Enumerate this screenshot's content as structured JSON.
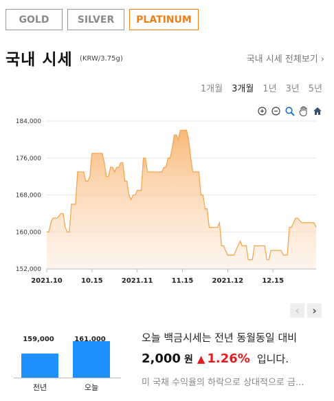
{
  "tabs": [
    {
      "label": "GOLD"
    },
    {
      "label": "SILVER"
    },
    {
      "label": "PLATINUM"
    }
  ],
  "header": {
    "title": "국내 시세",
    "unit": "(KRW/3.75g)",
    "view_all": "국내 시세 전체보기 ›"
  },
  "periods": [
    {
      "label": "1개월"
    },
    {
      "label": "3개월"
    },
    {
      "label": "1년"
    },
    {
      "label": "3년"
    },
    {
      "label": "5년"
    }
  ],
  "toolbar": {
    "icons": [
      "zoom-in-icon",
      "zoom-out-icon",
      "magnifier-icon",
      "hand-pan-icon",
      "home-icon"
    ]
  },
  "colors": {
    "accent": "#f07d16",
    "line": "#f5a54f",
    "fill_top": "#f9b672",
    "bar": "#1e90ff",
    "up": "#e21d1d"
  },
  "chart_data": {
    "type": "area",
    "yticks": [
      "184,000",
      "176,000",
      "168,000",
      "160,000",
      "152,000"
    ],
    "ylim": [
      152000,
      184000
    ],
    "xticks": [
      "2021.10",
      "10.15",
      "2021.11",
      "11.15",
      "2021.12",
      "12.15"
    ],
    "grid": true,
    "series": [
      {
        "values": [
          160000,
          160000,
          162000,
          163000,
          163000,
          163000,
          163500,
          164000,
          164000,
          161000,
          160000,
          160000,
          166000,
          166000,
          166000,
          173000,
          173000,
          173000,
          173000,
          171000,
          171000,
          172000,
          177000,
          177000,
          177000,
          177000,
          177000,
          177000,
          175000,
          172000,
          172000,
          174000,
          174000,
          173000,
          174000,
          174000,
          175000,
          175000,
          171000,
          171000,
          168000,
          167000,
          168000,
          168000,
          169000,
          169000,
          169000,
          176000,
          176000,
          173000,
          173000,
          173000,
          173000,
          173000,
          173000,
          173000,
          173000,
          174000,
          174000,
          176000,
          176000,
          178000,
          181000,
          181000,
          180000,
          182000,
          182000,
          182000,
          182000,
          180000,
          176000,
          173000,
          173000,
          173000,
          173000,
          168000,
          168000,
          165000,
          165000,
          161000,
          161000,
          161000,
          161000,
          161000,
          162000,
          157000,
          157000,
          156000,
          155000,
          155000,
          155000,
          155000,
          156000,
          157000,
          158000,
          157000,
          157000,
          157000,
          154000,
          154000,
          154000,
          157000,
          157000,
          157000,
          157000,
          157000,
          157000,
          154000,
          154000,
          156000,
          156000,
          156000,
          156000,
          156000,
          156000,
          155000,
          155000,
          155000,
          161000,
          161000,
          162000,
          163000,
          163000,
          162500,
          162000,
          162000,
          162000,
          162000,
          162000,
          162000,
          162000,
          161000
        ]
      }
    ]
  },
  "nav": {
    "prev": "‹",
    "next": "›"
  },
  "comparison": {
    "bars": [
      {
        "label": "전년",
        "value": 159000,
        "value_text": "159,000"
      },
      {
        "label": "오늘",
        "value": 161000,
        "value_text": "161,000"
      }
    ]
  },
  "summary": {
    "line1": "오늘 백금시세는 전년 동월동일 대비",
    "diff": "2,000",
    "diff_unit": "원",
    "arrow": "▲",
    "percent": "1.26%",
    "tail": "입니다.",
    "note": "미 국채 수익율의 하락으로 상대적으로 금..."
  }
}
